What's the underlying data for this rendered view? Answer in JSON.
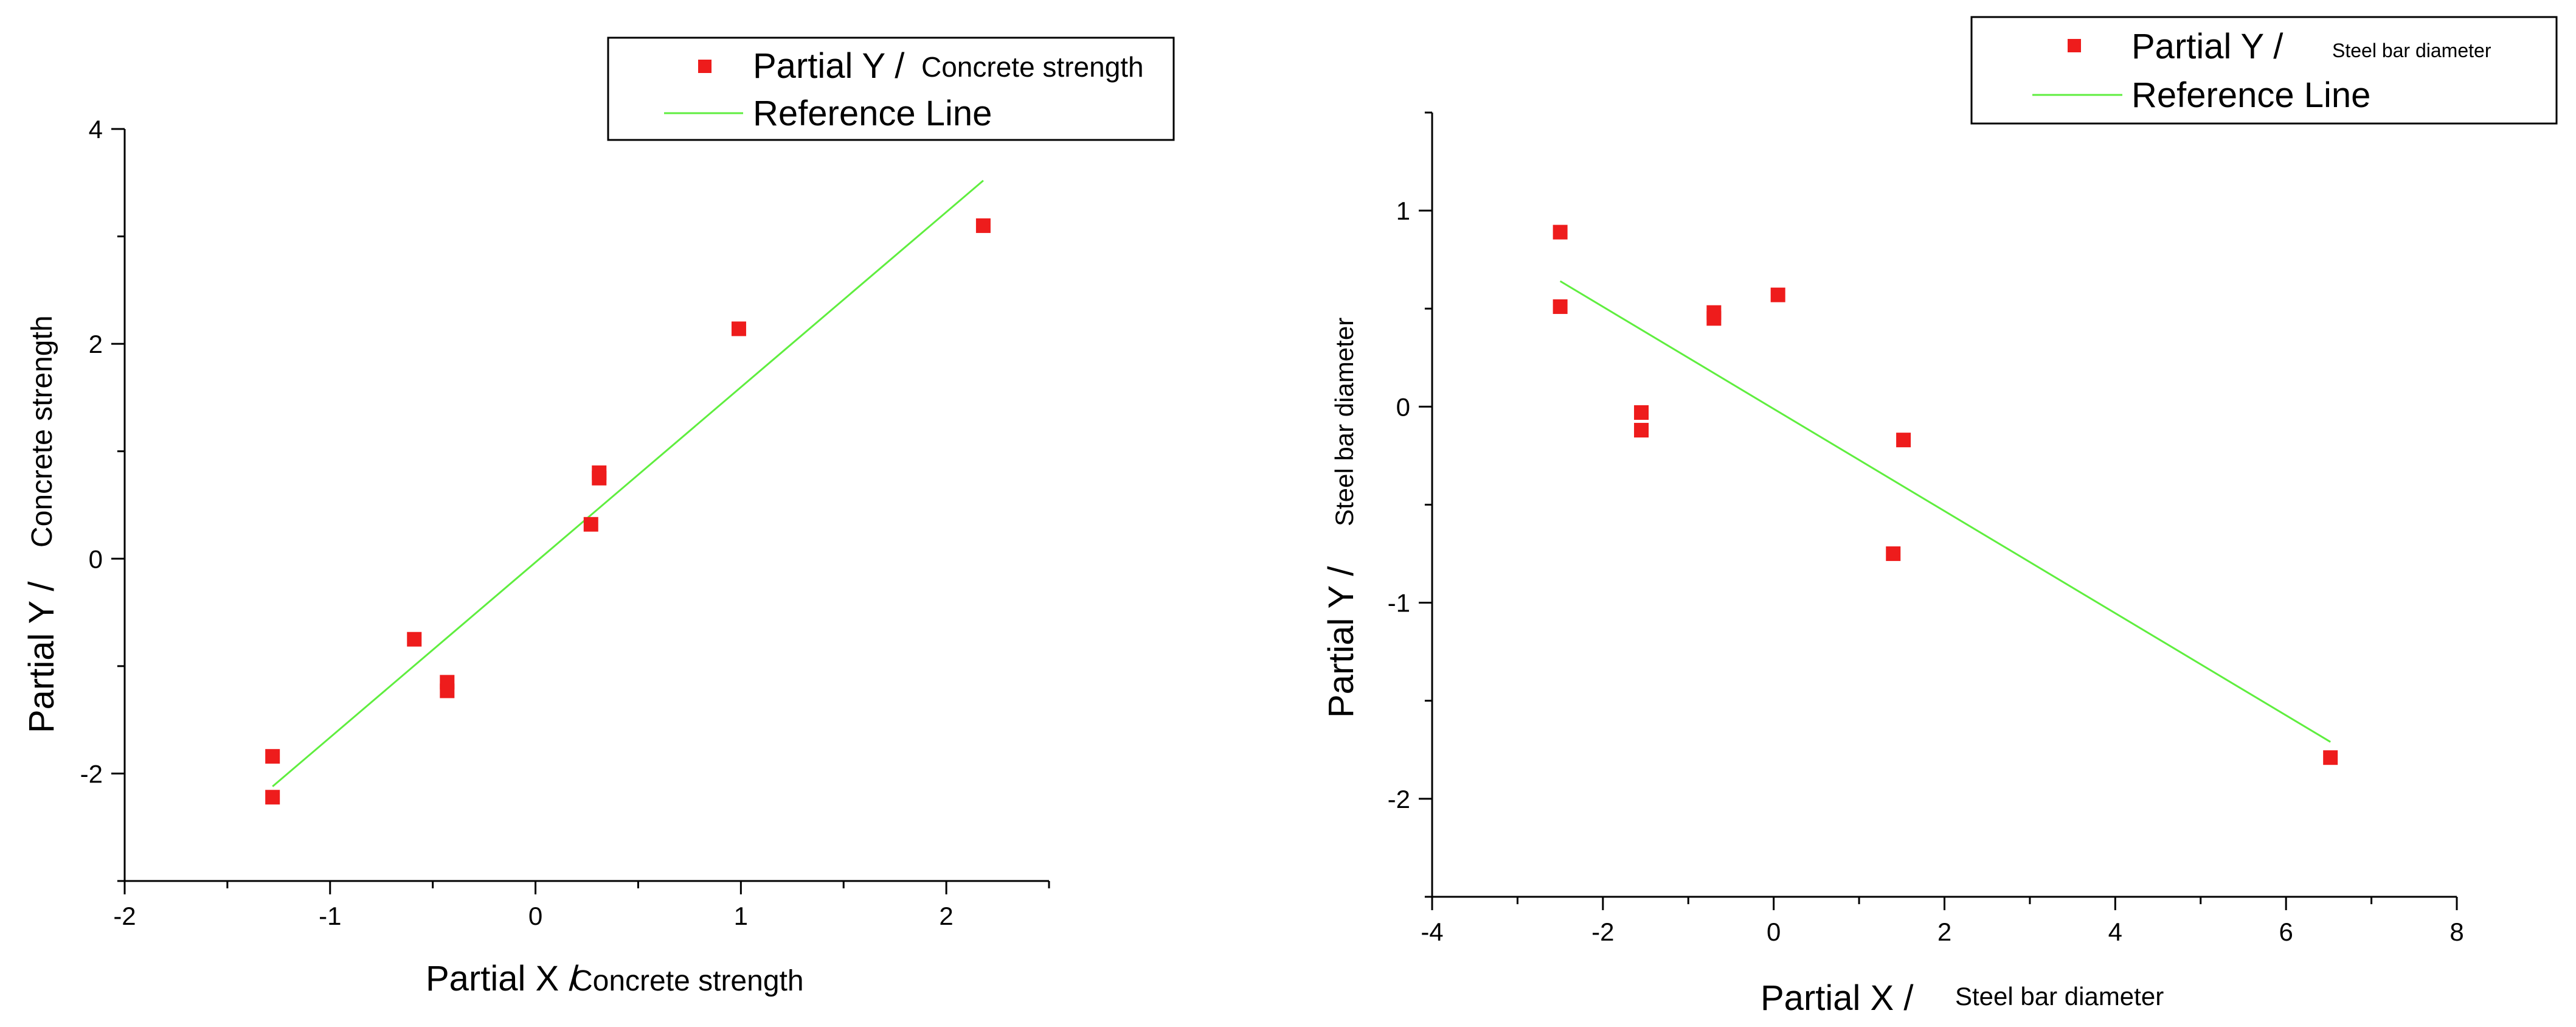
{
  "chart_data": [
    {
      "type": "scatter",
      "title": "",
      "xlabel": "Partial X /",
      "xlabel_detail": "Concrete strength",
      "ylabel": "Partial Y /",
      "ylabel_detail": "Concrete strength",
      "xlim": [
        -2,
        2.5
      ],
      "ylim": [
        -3,
        4
      ],
      "x_ticks": [
        -2,
        -1,
        0,
        1,
        2
      ],
      "y_ticks": [
        -2,
        0,
        2,
        4
      ],
      "legend": {
        "position": "top-right",
        "entries": [
          {
            "marker": "square",
            "color": "#ee1c1c",
            "label": "Partial Y /",
            "label_detail": "Concrete strength"
          },
          {
            "marker": "line",
            "color": "#5fee3f",
            "label": "Reference Line",
            "label_detail": ""
          }
        ]
      },
      "series": [
        {
          "name": "Partial Y / Concrete strength",
          "color": "#ee1c1c",
          "points": [
            {
              "x": -1.28,
              "y": -1.84
            },
            {
              "x": -1.28,
              "y": -2.22
            },
            {
              "x": -0.59,
              "y": -0.75
            },
            {
              "x": -0.43,
              "y": -1.15
            },
            {
              "x": -0.43,
              "y": -1.23
            },
            {
              "x": 0.27,
              "y": 0.32
            },
            {
              "x": 0.31,
              "y": 0.8
            },
            {
              "x": 0.31,
              "y": 0.75
            },
            {
              "x": 0.99,
              "y": 2.14
            },
            {
              "x": 2.18,
              "y": 3.1
            }
          ]
        }
      ],
      "reference_line": {
        "name": "Reference Line",
        "color": "#5fee3f",
        "from": [
          -1.28,
          -2.12
        ],
        "to": [
          2.18,
          3.52
        ]
      }
    },
    {
      "type": "scatter",
      "title": "",
      "xlabel": "Partial X /",
      "xlabel_detail": "Steel bar diameter",
      "ylabel": "Partial Y /",
      "ylabel_detail": "Steel bar diameter",
      "xlim": [
        -4,
        8
      ],
      "ylim": [
        -2.5,
        1.5
      ],
      "x_ticks": [
        -4,
        -2,
        0,
        2,
        4,
        6,
        8
      ],
      "y_ticks": [
        -2,
        -1,
        0,
        1
      ],
      "legend": {
        "position": "top-right",
        "entries": [
          {
            "marker": "square",
            "color": "#ee1c1c",
            "label": "Partial Y /",
            "label_detail": "Steel bar diameter"
          },
          {
            "marker": "line",
            "color": "#5fee3f",
            "label": "Reference Line",
            "label_detail": ""
          }
        ]
      },
      "series": [
        {
          "name": "Partial Y / Steel bar diameter",
          "color": "#ee1c1c",
          "points": [
            {
              "x": -2.5,
              "y": 0.89
            },
            {
              "x": -2.5,
              "y": 0.51
            },
            {
              "x": -1.55,
              "y": -0.03
            },
            {
              "x": -1.55,
              "y": -0.12
            },
            {
              "x": -0.7,
              "y": 0.48
            },
            {
              "x": -0.7,
              "y": 0.45
            },
            {
              "x": 0.05,
              "y": 0.57
            },
            {
              "x": 1.4,
              "y": -0.75
            },
            {
              "x": 1.52,
              "y": -0.17
            },
            {
              "x": 6.52,
              "y": -1.79
            }
          ]
        }
      ],
      "reference_line": {
        "name": "Reference Line",
        "color": "#5fee3f",
        "from": [
          -2.5,
          0.64
        ],
        "to": [
          6.52,
          -1.71
        ]
      }
    }
  ]
}
